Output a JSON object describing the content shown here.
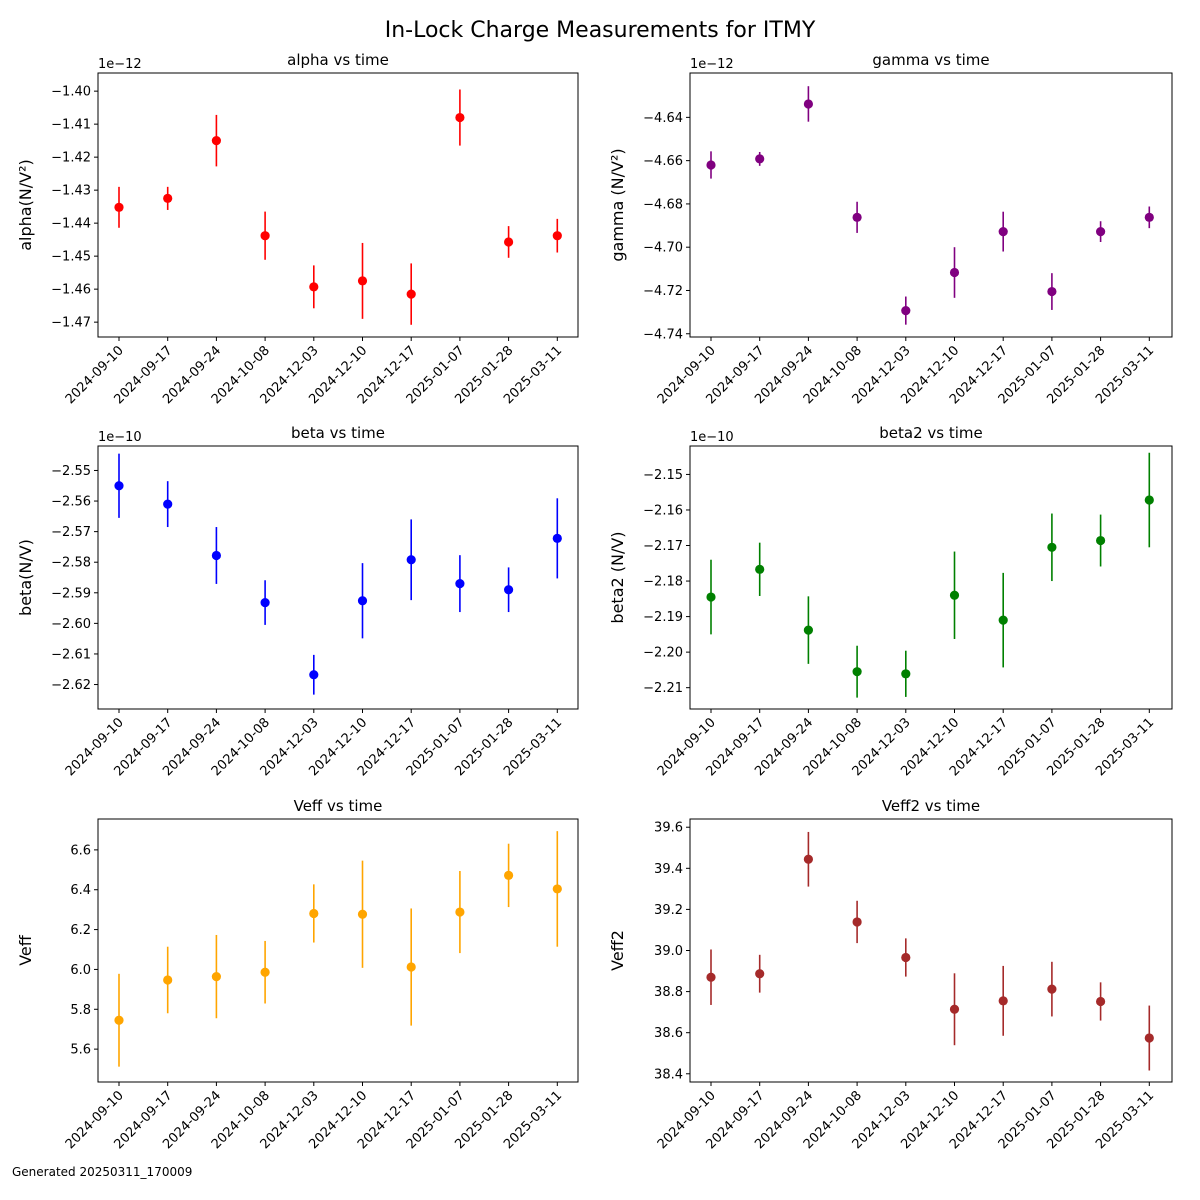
{
  "figure": {
    "title": "In-Lock Charge Measurements for ITMY",
    "footer": "Generated 20250311_170009"
  },
  "chart_data": [
    {
      "type": "scatter",
      "title": "alpha vs time",
      "ylabel": "alpha(N/V²)",
      "offset_label": "1e−12",
      "color": "#ff0000",
      "categories": [
        "2024-09-10",
        "2024-09-17",
        "2024-09-24",
        "2024-10-08",
        "2024-12-03",
        "2024-12-10",
        "2024-12-17",
        "2025-01-07",
        "2025-01-28",
        "2025-03-11"
      ],
      "values": [
        -1.4352,
        -1.4325,
        -1.415,
        -1.4438,
        -1.4593,
        -1.4575,
        -1.4615,
        -1.408,
        -1.4457,
        -1.4438
      ],
      "errors": [
        0.0062,
        0.0035,
        0.0078,
        0.0073,
        0.0065,
        0.0115,
        0.0093,
        0.0085,
        0.0048,
        0.0051
      ],
      "ylim": [
        -1.4745,
        -1.3945
      ],
      "yticks": [
        -1.47,
        -1.46,
        -1.45,
        -1.44,
        -1.43,
        -1.42,
        -1.41,
        -1.4
      ],
      "ytick_labels": [
        "−1.47",
        "−1.46",
        "−1.45",
        "−1.44",
        "−1.43",
        "−1.42",
        "−1.41",
        "−1.40"
      ]
    },
    {
      "type": "scatter",
      "title": "gamma vs time",
      "ylabel": "gamma (N/V²)",
      "offset_label": "1e−12",
      "color": "#800080",
      "categories": [
        "2024-09-10",
        "2024-09-17",
        "2024-09-24",
        "2024-10-08",
        "2024-12-03",
        "2024-12-10",
        "2024-12-17",
        "2025-01-07",
        "2025-01-28",
        "2025-03-11"
      ],
      "values": [
        -4.662,
        -4.6592,
        -4.6338,
        -4.6862,
        -4.7293,
        -4.7117,
        -4.6928,
        -4.7205,
        -4.6928,
        -4.6862
      ],
      "errors": [
        0.0063,
        0.0032,
        0.0082,
        0.0072,
        0.0065,
        0.0117,
        0.0092,
        0.0085,
        0.0048,
        0.005
      ],
      "ylim": [
        -4.7415,
        -4.6195
      ],
      "yticks": [
        -4.74,
        -4.72,
        -4.7,
        -4.68,
        -4.66,
        -4.64
      ],
      "ytick_labels": [
        "−4.74",
        "−4.72",
        "−4.70",
        "−4.68",
        "−4.66",
        "−4.64"
      ]
    },
    {
      "type": "scatter",
      "title": "beta vs time",
      "ylabel": "beta(N/V)",
      "offset_label": "1e−10",
      "color": "#0000ff",
      "categories": [
        "2024-09-10",
        "2024-09-17",
        "2024-09-24",
        "2024-10-08",
        "2024-12-03",
        "2024-12-10",
        "2024-12-17",
        "2025-01-07",
        "2025-01-28",
        "2025-03-11"
      ],
      "values": [
        -2.555,
        -2.561,
        -2.5778,
        -2.5932,
        -2.6168,
        -2.5926,
        -2.5792,
        -2.587,
        -2.589,
        -2.5722
      ],
      "errors": [
        0.0105,
        0.0075,
        0.0093,
        0.0073,
        0.0065,
        0.0123,
        0.0132,
        0.0093,
        0.0073,
        0.0131
      ],
      "ylim": [
        -2.628,
        -2.542
      ],
      "yticks": [
        -2.62,
        -2.61,
        -2.6,
        -2.59,
        -2.58,
        -2.57,
        -2.56,
        -2.55
      ],
      "ytick_labels": [
        "−2.62",
        "−2.61",
        "−2.60",
        "−2.59",
        "−2.58",
        "−2.57",
        "−2.56",
        "−2.55"
      ]
    },
    {
      "type": "scatter",
      "title": "beta2 vs time",
      "ylabel": "beta2 (N/V)",
      "offset_label": "1e−10",
      "color": "#008000",
      "categories": [
        "2024-09-10",
        "2024-09-17",
        "2024-09-24",
        "2024-10-08",
        "2024-12-03",
        "2024-12-10",
        "2024-12-17",
        "2025-01-07",
        "2025-01-28",
        "2025-03-11"
      ],
      "values": [
        -2.1845,
        -2.1767,
        -2.1938,
        -2.2055,
        -2.2061,
        -2.184,
        -2.191,
        -2.1705,
        -2.1686,
        -2.1572
      ],
      "errors": [
        0.0105,
        0.0075,
        0.0095,
        0.0073,
        0.0065,
        0.0123,
        0.0133,
        0.0095,
        0.0073,
        0.0133
      ],
      "ylim": [
        -2.216,
        -2.142
      ],
      "yticks": [
        -2.21,
        -2.2,
        -2.19,
        -2.18,
        -2.17,
        -2.16,
        -2.15
      ],
      "ytick_labels": [
        "−2.21",
        "−2.20",
        "−2.19",
        "−2.18",
        "−2.17",
        "−2.16",
        "−2.15"
      ]
    },
    {
      "type": "scatter",
      "title": "Veff vs time",
      "ylabel": "Veff",
      "offset_label": "",
      "color": "#ffa500",
      "categories": [
        "2024-09-10",
        "2024-09-17",
        "2024-09-24",
        "2024-10-08",
        "2024-12-03",
        "2024-12-10",
        "2024-12-17",
        "2025-01-07",
        "2025-01-28",
        "2025-03-11"
      ],
      "values": [
        5.745,
        5.947,
        5.964,
        5.986,
        6.281,
        6.277,
        6.012,
        6.288,
        6.472,
        6.404
      ],
      "errors": [
        0.233,
        0.167,
        0.209,
        0.157,
        0.146,
        0.269,
        0.294,
        0.206,
        0.159,
        0.29
      ],
      "ylim": [
        5.435,
        6.755
      ],
      "yticks": [
        5.6,
        5.8,
        6.0,
        6.2,
        6.4,
        6.6
      ],
      "ytick_labels": [
        "5.6",
        "5.8",
        "6.0",
        "6.2",
        "6.4",
        "6.6"
      ]
    },
    {
      "type": "scatter",
      "title": "Veff2 vs time",
      "ylabel": "Veff2",
      "offset_label": "",
      "color": "#a52a2a",
      "categories": [
        "2024-09-10",
        "2024-09-17",
        "2024-09-24",
        "2024-10-08",
        "2024-12-03",
        "2024-12-10",
        "2024-12-17",
        "2025-01-07",
        "2025-01-28",
        "2025-03-11"
      ],
      "values": [
        38.87,
        38.887,
        39.444,
        39.139,
        38.966,
        38.714,
        38.755,
        38.812,
        38.752,
        38.574
      ],
      "errors": [
        0.135,
        0.092,
        0.133,
        0.103,
        0.093,
        0.175,
        0.17,
        0.133,
        0.093,
        0.158
      ],
      "ylim": [
        38.36,
        39.64
      ],
      "yticks": [
        38.4,
        38.6,
        38.8,
        39.0,
        39.2,
        39.4,
        39.6
      ],
      "ytick_labels": [
        "38.4",
        "38.6",
        "38.8",
        "39.0",
        "39.2",
        "39.4",
        "39.6"
      ]
    }
  ]
}
